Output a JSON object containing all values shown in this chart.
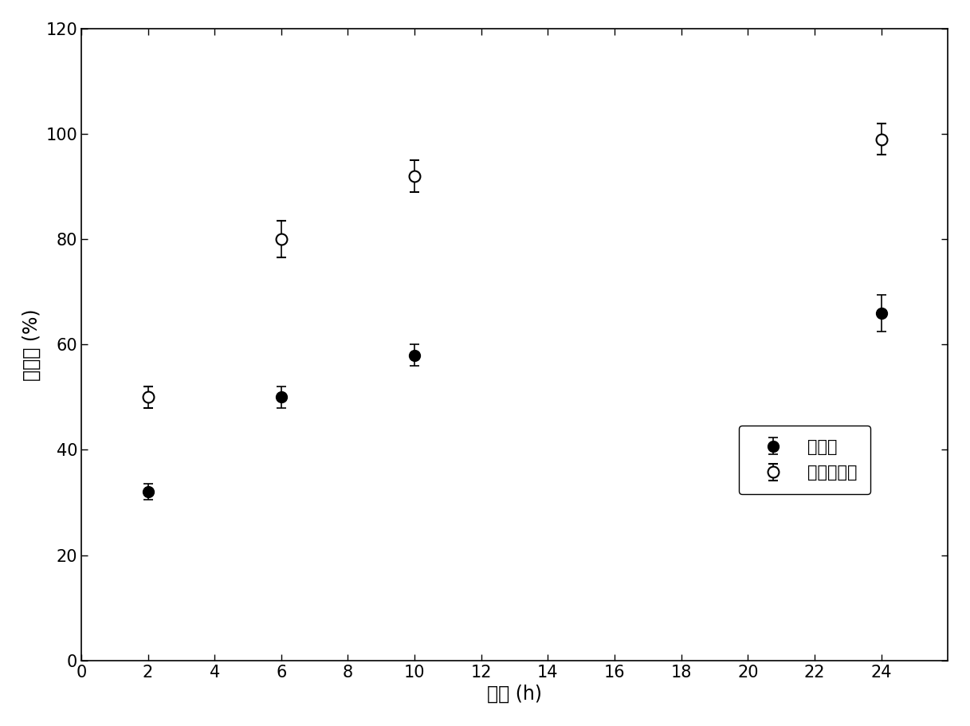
{
  "x": [
    2,
    6,
    10,
    24
  ],
  "series1_y": [
    32,
    50,
    58,
    66
  ],
  "series1_yerr": [
    1.5,
    2.0,
    2.0,
    3.5
  ],
  "series1_label": "对比样",
  "series1_color": "black",
  "series2_y": [
    50,
    80,
    92,
    99
  ],
  "series2_yerr": [
    2.0,
    3.5,
    3.0,
    3.0
  ],
  "series2_label": "二鼠李糖脂",
  "series2_color": "black",
  "xlabel": "时间 (h)",
  "ylabel": "去除率 (%)",
  "xlim": [
    0,
    26
  ],
  "ylim": [
    0,
    120
  ],
  "xticks": [
    0,
    2,
    4,
    6,
    8,
    10,
    12,
    14,
    16,
    18,
    20,
    22,
    24
  ],
  "yticks": [
    0,
    20,
    40,
    60,
    80,
    100,
    120
  ],
  "background_color": "#ffffff",
  "linewidth": 1.5,
  "markersize": 10,
  "capsize": 4,
  "legend_fontsize": 15,
  "axis_fontsize": 17,
  "tick_fontsize": 15
}
